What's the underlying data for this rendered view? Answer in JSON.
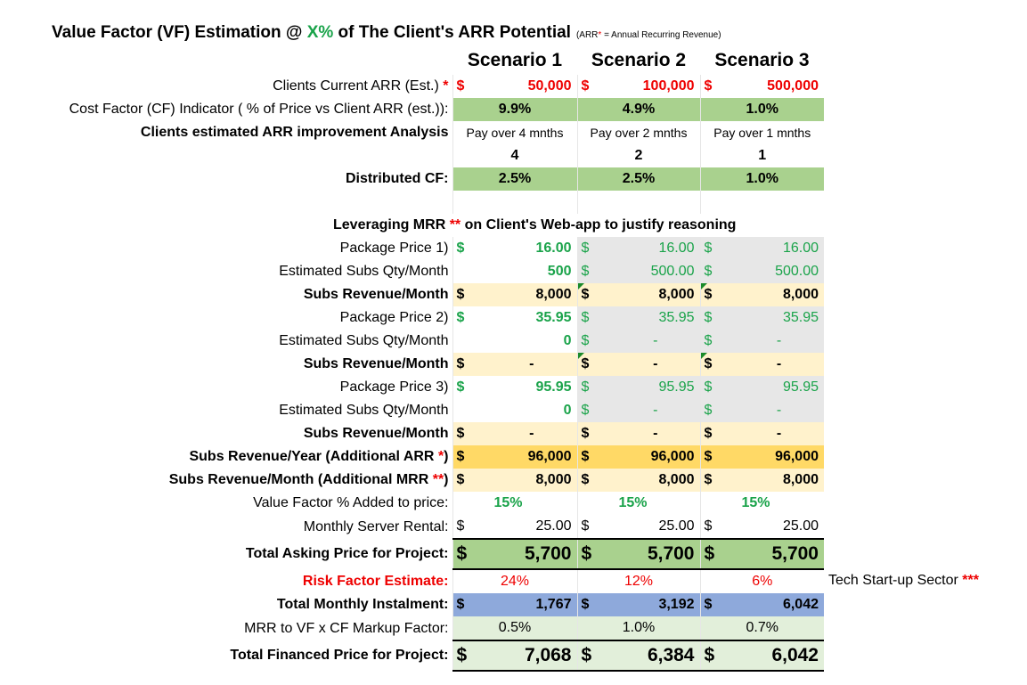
{
  "title": {
    "prefix": "Value Factor (VF) Estimation @ ",
    "x": "X%",
    "suffix": " of The Client's ARR Potential",
    "note_pre": "(ARR",
    "note_star": "*",
    "note_post": " = Annual Recurring Revenue)"
  },
  "scenarios": [
    "Scenario 1",
    "Scenario 2",
    "Scenario 3"
  ],
  "rows": {
    "current_arr": {
      "label": "Clients Current ARR (Est.)",
      "star": "*",
      "currency": "$",
      "values": [
        "50,000",
        "100,000",
        "500,000"
      ]
    },
    "cf_indicator": {
      "label": "Cost Factor (CF) Indicator ( % of Price vs Client ARR (est.)):",
      "values": [
        "9.9%",
        "4.9%",
        "1.0%"
      ]
    },
    "arr_analysis": {
      "label": "Clients estimated ARR improvement Analysis",
      "values": [
        "Pay over 4 mnths",
        "Pay over 2 mnths",
        "Pay over 1 mnths"
      ]
    },
    "months": {
      "values": [
        "4",
        "2",
        "1"
      ]
    },
    "distributed_cf": {
      "label": "Distributed CF:",
      "values": [
        "2.5%",
        "2.5%",
        "1.0%"
      ]
    },
    "leveraging": {
      "pre": "Leveraging MRR ",
      "star": "**",
      "post": " on Client's Web-app to justify reasoning"
    },
    "pkg1_price": {
      "label": "Package Price 1)",
      "currency": "$",
      "values": [
        "16.00",
        "16.00",
        "16.00"
      ]
    },
    "pkg1_qty": {
      "label": "Estimated Subs Qty/Month",
      "currency": "$",
      "values": [
        "500",
        "500.00",
        "500.00"
      ]
    },
    "pkg1_rev": {
      "label": "Subs Revenue/Month",
      "currency": "$",
      "values": [
        "8,000",
        "8,000",
        "8,000"
      ]
    },
    "pkg2_price": {
      "label": "Package Price 2)",
      "currency": "$",
      "values": [
        "35.95",
        "35.95",
        "35.95"
      ]
    },
    "pkg2_qty": {
      "label": "Estimated Subs Qty/Month",
      "currency": "$",
      "values": [
        "0",
        "-",
        "-"
      ]
    },
    "pkg2_rev": {
      "label": "Subs Revenue/Month",
      "currency": "$",
      "values": [
        "-",
        "-",
        "-"
      ]
    },
    "pkg3_price": {
      "label": "Package Price 3)",
      "currency": "$",
      "values": [
        "95.95",
        "95.95",
        "95.95"
      ]
    },
    "pkg3_qty": {
      "label": "Estimated Subs Qty/Month",
      "currency": "$",
      "values": [
        "0",
        "-",
        "-"
      ]
    },
    "pkg3_rev": {
      "label": "Subs Revenue/Month",
      "currency": "$",
      "values": [
        "-",
        "-",
        "-"
      ]
    },
    "rev_year": {
      "label": "Subs Revenue/Year (Additional ARR ",
      "star": "*",
      "close": ")",
      "currency": "$",
      "values": [
        "96,000",
        "96,000",
        "96,000"
      ]
    },
    "rev_month": {
      "label": "Subs Revenue/Month (Additional MRR ",
      "star": "**",
      "close": ")",
      "currency": "$",
      "values": [
        "8,000",
        "8,000",
        "8,000"
      ]
    },
    "vf_added": {
      "label": "Value Factor % Added to price:",
      "values": [
        "15%",
        "15%",
        "15%"
      ]
    },
    "server": {
      "label": "Monthly Server Rental:",
      "currency": "$",
      "values": [
        "25.00",
        "25.00",
        "25.00"
      ]
    },
    "total_asking": {
      "label": "Total Asking Price for Project:",
      "currency": "$",
      "values": [
        "5,700",
        "5,700",
        "5,700"
      ]
    },
    "risk": {
      "label": "Risk Factor Estimate:",
      "values": [
        "24%",
        "12%",
        "6%"
      ]
    },
    "monthly_instalment": {
      "label": "Total Monthly Instalment:",
      "currency": "$",
      "values": [
        "1,767",
        "3,192",
        "6,042"
      ]
    },
    "markup": {
      "label": "MRR to VF x CF Markup Factor:",
      "values": [
        "0.5%",
        "1.0%",
        "0.7%"
      ]
    },
    "total_financed": {
      "label": "Total Financed Price for Project:",
      "currency": "$",
      "values": [
        "7,068",
        "6,384",
        "6,042"
      ]
    }
  },
  "side_note": {
    "text": "Tech Start-up Sector ",
    "star": "***"
  },
  "colors": {
    "green_fill": "#a9d18e",
    "light_green_fill": "#e2efda",
    "grey_fill": "#e7e7e7",
    "cream_fill": "#fff2cc",
    "gold_fill": "#ffd966",
    "blue_fill": "#8ea9db",
    "accent_red": "#ee0000",
    "accent_green": "#1aa34a"
  }
}
